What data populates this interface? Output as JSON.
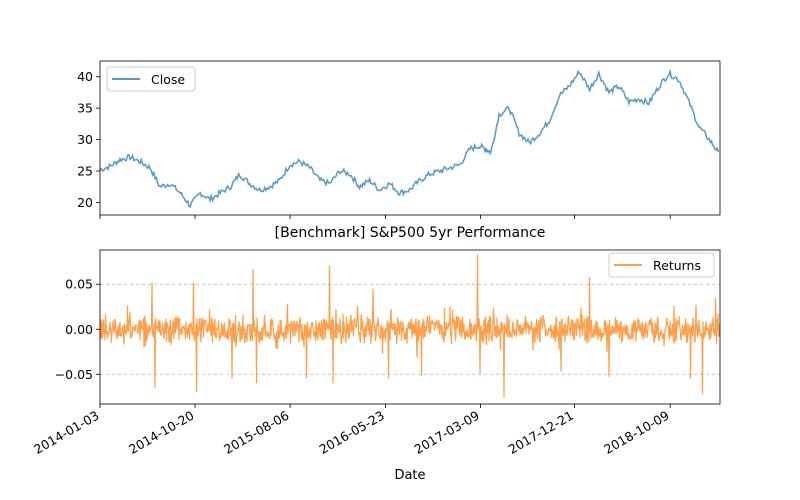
{
  "chart_data": [
    {
      "type": "line",
      "title": "",
      "xlabel": "",
      "ylabel": "",
      "ylim": [
        18,
        42.5
      ],
      "yticks": [
        20,
        25,
        30,
        35,
        40
      ],
      "grid": false,
      "legend_placement": "top-left",
      "series": [
        {
          "name": "Close",
          "color": "#1f77b4",
          "x": [
            "2014-01-03",
            "2014-02-05",
            "2014-03-05",
            "2014-04-05",
            "2014-05-05",
            "2014-06-05",
            "2014-07-05",
            "2014-08-05",
            "2014-09-05",
            "2014-10-05",
            "2014-11-05",
            "2014-12-05",
            "2015-01-05",
            "2015-02-05",
            "2015-03-05",
            "2015-04-05",
            "2015-05-05",
            "2015-06-05",
            "2015-07-05",
            "2015-08-05",
            "2015-09-05",
            "2015-10-05",
            "2015-11-05",
            "2015-12-05",
            "2016-01-05",
            "2016-02-05",
            "2016-03-05",
            "2016-04-05",
            "2016-05-05",
            "2016-06-05",
            "2016-07-05",
            "2016-08-05",
            "2016-09-05",
            "2016-10-05",
            "2016-11-05",
            "2016-12-05",
            "2017-01-05",
            "2017-02-05",
            "2017-03-05",
            "2017-03-25",
            "2017-04-10",
            "2017-05-05",
            "2017-06-05",
            "2017-07-05",
            "2017-08-05",
            "2017-09-05",
            "2017-10-05",
            "2017-11-05",
            "2017-12-05",
            "2018-01-05",
            "2018-02-05",
            "2018-03-05",
            "2018-04-05",
            "2018-05-05",
            "2018-06-05",
            "2018-07-05",
            "2018-08-05",
            "2018-09-05",
            "2018-10-05",
            "2018-11-05",
            "2018-12-05",
            "2019-01-05",
            "2019-02-05",
            "2019-03-05"
          ],
          "values": [
            25.2,
            25.8,
            26.8,
            27.2,
            26.5,
            25.5,
            22.5,
            23.0,
            21.5,
            19.5,
            21.5,
            20.5,
            21.5,
            22.5,
            24.5,
            23.0,
            22.0,
            22.5,
            23.5,
            26.0,
            26.5,
            25.5,
            23.5,
            23.0,
            25.0,
            24.5,
            22.5,
            23.5,
            22.0,
            23.0,
            21.5,
            22.0,
            23.5,
            24.5,
            25.0,
            25.5,
            26.0,
            28.5,
            29.0,
            28.5,
            28.0,
            34.0,
            35.0,
            31.0,
            29.5,
            31.0,
            33.0,
            37.0,
            38.5,
            40.8,
            38.0,
            40.5,
            37.5,
            38.5,
            36.0,
            36.5,
            35.8,
            38.5,
            40.5,
            39.5,
            36.0,
            32.0,
            30.0,
            28.0
          ]
        }
      ]
    },
    {
      "type": "line",
      "title": "[Benchmark] S&P500 5yr Performance",
      "xlabel": "Date",
      "ylabel": "",
      "ylim": [
        -0.083,
        0.088
      ],
      "yticks": [
        -0.05,
        0.0,
        0.05
      ],
      "ytick_labels": [
        "−0.05",
        "0.00",
        "0.05"
      ],
      "xticks": [
        "2014-01-03",
        "2014-10-20",
        "2015-08-06",
        "2016-05-23",
        "2017-03-09",
        "2017-12-21",
        "2018-10-09"
      ],
      "xlim": [
        "2014-01-03",
        "2019-03-10"
      ],
      "grid": true,
      "grid_axis": "y",
      "legend_placement": "top-right",
      "series": [
        {
          "name": "Returns",
          "color": "#ff7f0e",
          "spikes": [
            {
              "x": "2014-06-10",
              "y": 0.052
            },
            {
              "x": "2014-06-20",
              "y": -0.065
            },
            {
              "x": "2014-10-15",
              "y": 0.052
            },
            {
              "x": "2014-10-25",
              "y": -0.07
            },
            {
              "x": "2015-02-10",
              "y": -0.055
            },
            {
              "x": "2015-04-15",
              "y": 0.067
            },
            {
              "x": "2015-04-25",
              "y": -0.06
            },
            {
              "x": "2015-09-25",
              "y": -0.054
            },
            {
              "x": "2015-12-05",
              "y": 0.071
            },
            {
              "x": "2015-12-15",
              "y": -0.06
            },
            {
              "x": "2016-04-15",
              "y": 0.045
            },
            {
              "x": "2016-06-01",
              "y": -0.055
            },
            {
              "x": "2016-09-10",
              "y": -0.052
            },
            {
              "x": "2017-02-28",
              "y": 0.083
            },
            {
              "x": "2017-03-08",
              "y": -0.05
            },
            {
              "x": "2017-05-20",
              "y": -0.076
            },
            {
              "x": "2017-11-10",
              "y": -0.047
            },
            {
              "x": "2018-02-05",
              "y": 0.058
            },
            {
              "x": "2018-04-05",
              "y": -0.053
            },
            {
              "x": "2018-12-10",
              "y": -0.055
            },
            {
              "x": "2019-01-15",
              "y": -0.072
            },
            {
              "x": "2019-02-25",
              "y": 0.035
            }
          ]
        }
      ]
    }
  ]
}
